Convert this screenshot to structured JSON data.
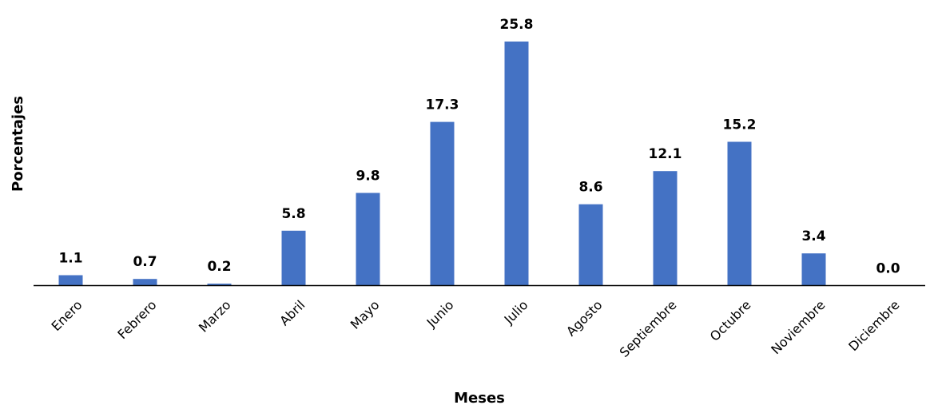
{
  "chart_data": {
    "type": "bar",
    "title": "",
    "xlabel": "Meses",
    "ylabel": "Porcentajes",
    "categories": [
      "Enero",
      "Febrero",
      "Marzo",
      "Abril",
      "Mayo",
      "Junio",
      "Julio",
      "Agosto",
      "Septiembre",
      "Octubre",
      "Noviembre",
      "Diciembre"
    ],
    "values": [
      1.1,
      0.7,
      0.2,
      5.8,
      9.8,
      17.3,
      25.8,
      8.6,
      12.1,
      15.2,
      3.4,
      0.0
    ],
    "value_labels": [
      "1.1",
      "0.7",
      "0.2",
      "5.8",
      "9.8",
      "17.3",
      "25.8",
      "8.6",
      "12.1",
      "15.2",
      "3.4",
      "0.0"
    ],
    "ylim": [
      0,
      25.8
    ],
    "grid": false,
    "legend": "none",
    "bar_color": "#4472C4"
  }
}
